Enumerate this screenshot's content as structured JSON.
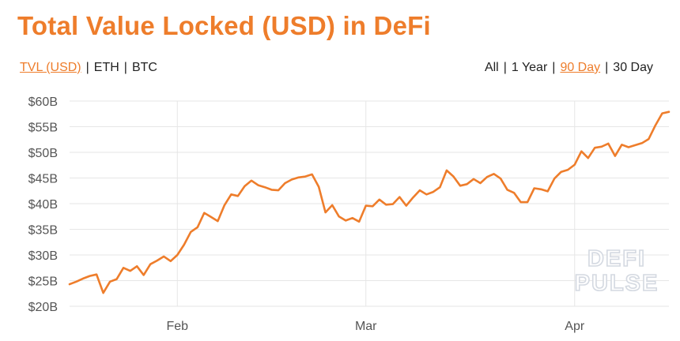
{
  "header": {
    "title": "Total Value Locked (USD) in DeFi"
  },
  "metric_tabs": [
    {
      "label": "TVL (USD)",
      "active": true
    },
    {
      "label": "ETH",
      "active": false
    },
    {
      "label": "BTC",
      "active": false
    }
  ],
  "range_tabs": [
    {
      "label": "All",
      "active": false
    },
    {
      "label": "1 Year",
      "active": false
    },
    {
      "label": "90 Day",
      "active": true
    },
    {
      "label": "30 Day",
      "active": false
    }
  ],
  "watermark": {
    "line1": "DEFI",
    "line2": "PULSE"
  },
  "colors": {
    "accent": "#ee7d2b",
    "grid": "#e6e6e6",
    "axis_text": "#555555"
  },
  "chart_data": {
    "type": "line",
    "title": "Total Value Locked (USD) in DeFi",
    "xlabel": "",
    "ylabel": "",
    "x_range": [
      "2021-01-16",
      "2021-04-15"
    ],
    "ylim": [
      20,
      60
    ],
    "y_unit": "B USD",
    "y_ticks": [
      {
        "value": 20,
        "label": "$20B"
      },
      {
        "value": 25,
        "label": "$25B"
      },
      {
        "value": 30,
        "label": "$30B"
      },
      {
        "value": 35,
        "label": "$35B"
      },
      {
        "value": 40,
        "label": "$40B"
      },
      {
        "value": 45,
        "label": "$45B"
      },
      {
        "value": 50,
        "label": "$50B"
      },
      {
        "value": 55,
        "label": "$55B"
      },
      {
        "value": 60,
        "label": "$60B"
      }
    ],
    "x_ticks": [
      {
        "date": "2021-02-01",
        "label": "Feb"
      },
      {
        "date": "2021-03-01",
        "label": "Mar"
      },
      {
        "date": "2021-04-01",
        "label": "Apr"
      }
    ],
    "grid": true,
    "legend": "none",
    "series": [
      {
        "x": [
          "2021-01-16",
          "2021-01-17",
          "2021-01-18",
          "2021-01-19",
          "2021-01-20",
          "2021-01-21",
          "2021-01-22",
          "2021-01-23",
          "2021-01-24",
          "2021-01-25",
          "2021-01-26",
          "2021-01-27",
          "2021-01-28",
          "2021-01-29",
          "2021-01-30",
          "2021-01-31",
          "2021-02-01",
          "2021-02-02",
          "2021-02-03",
          "2021-02-04",
          "2021-02-05",
          "2021-02-06",
          "2021-02-07",
          "2021-02-08",
          "2021-02-09",
          "2021-02-10",
          "2021-02-11",
          "2021-02-12",
          "2021-02-13",
          "2021-02-14",
          "2021-02-15",
          "2021-02-16",
          "2021-02-17",
          "2021-02-18",
          "2021-02-19",
          "2021-02-20",
          "2021-02-21",
          "2021-02-22",
          "2021-02-23",
          "2021-02-24",
          "2021-02-25",
          "2021-02-26",
          "2021-02-27",
          "2021-02-28",
          "2021-03-01",
          "2021-03-02",
          "2021-03-03",
          "2021-03-04",
          "2021-03-05",
          "2021-03-06",
          "2021-03-07",
          "2021-03-08",
          "2021-03-09",
          "2021-03-10",
          "2021-03-11",
          "2021-03-12",
          "2021-03-13",
          "2021-03-14",
          "2021-03-15",
          "2021-03-16",
          "2021-03-17",
          "2021-03-18",
          "2021-03-19",
          "2021-03-20",
          "2021-03-21",
          "2021-03-22",
          "2021-03-23",
          "2021-03-24",
          "2021-03-25",
          "2021-03-26",
          "2021-03-27",
          "2021-03-28",
          "2021-03-29",
          "2021-03-30",
          "2021-03-31",
          "2021-04-01",
          "2021-04-02",
          "2021-04-03",
          "2021-04-04",
          "2021-04-05",
          "2021-04-06",
          "2021-04-07",
          "2021-04-08",
          "2021-04-09",
          "2021-04-10",
          "2021-04-11",
          "2021-04-12",
          "2021-04-13",
          "2021-04-14",
          "2021-04-15"
        ],
        "values": [
          24.3,
          24.8,
          25.4,
          25.9,
          26.2,
          22.6,
          24.8,
          25.3,
          27.5,
          26.9,
          27.8,
          26.1,
          28.2,
          28.9,
          29.7,
          28.8,
          30.0,
          32.0,
          34.5,
          35.4,
          38.2,
          37.4,
          36.6,
          39.7,
          41.8,
          41.5,
          43.4,
          44.5,
          43.6,
          43.2,
          42.7,
          42.6,
          44.0,
          44.7,
          45.1,
          45.3,
          45.7,
          43.3,
          38.3,
          39.7,
          37.5,
          36.7,
          37.2,
          36.5,
          39.6,
          39.5,
          40.8,
          39.8,
          39.9,
          41.3,
          39.6,
          41.2,
          42.6,
          41.8,
          42.3,
          43.2,
          46.5,
          45.3,
          43.5,
          43.8,
          44.8,
          44.0,
          45.2,
          45.8,
          44.9,
          42.7,
          42.1,
          40.3,
          40.3,
          43.0,
          42.8,
          42.4,
          44.9,
          46.2,
          46.6,
          47.6,
          50.2,
          48.9,
          50.9,
          51.1,
          51.7,
          49.3,
          51.5,
          51.0,
          51.4,
          51.8,
          52.6,
          55.3,
          57.6,
          57.9
        ]
      }
    ]
  }
}
